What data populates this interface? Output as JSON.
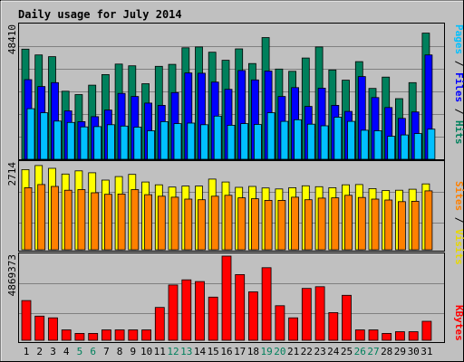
{
  "colors": {
    "background": "#c0c0c0",
    "hits": "#00805c",
    "files": "#0000ff",
    "pages": "#00c0ff",
    "visits": "#ffff00",
    "sites": "#ff8000",
    "kbytes": "#ff0000",
    "title": "#0000ff",
    "weekend_label": "#00805c"
  },
  "chart_data": {
    "type": "bar",
    "title": "Daily usage for July 2014",
    "categories": [
      "1",
      "2",
      "3",
      "4",
      "5",
      "6",
      "7",
      "8",
      "9",
      "10",
      "11",
      "12",
      "13",
      "14",
      "15",
      "16",
      "17",
      "18",
      "19",
      "20",
      "21",
      "22",
      "23",
      "24",
      "25",
      "26",
      "27",
      "28",
      "29",
      "30",
      "31"
    ],
    "weekend_days": [
      "5",
      "6",
      "12",
      "13",
      "19",
      "20",
      "26",
      "27"
    ],
    "panels": [
      {
        "max_label": "48410",
        "side_label": "Pages / Files / Hits",
        "ylim": [
          0,
          48410
        ],
        "series": [
          {
            "name": "Hits",
            "color": "#00805c",
            "values": [
              39800,
              37700,
              37100,
              24600,
              23400,
              26800,
              30600,
              34400,
              33800,
              27300,
              33600,
              34300,
              40300,
              40600,
              38700,
              35800,
              39900,
              34600,
              44000,
              32600,
              31800,
              36600,
              40600,
              32300,
              28600,
              35300,
              25600,
              29700,
              21900,
              27700,
              45600
            ]
          },
          {
            "name": "Files",
            "color": "#0000ff",
            "values": [
              28800,
              26300,
              27700,
              17500,
              13600,
              15400,
              17800,
              23800,
              22700,
              20300,
              19500,
              24100,
              31200,
              31100,
              27900,
              25300,
              32100,
              28700,
              31900,
              22700,
              25900,
              19100,
              25700,
              19500,
              17300,
              29900,
              22300,
              18700,
              14800,
              17100,
              37700
            ]
          },
          {
            "name": "Pages",
            "color": "#00c0ff",
            "values": [
              18300,
              16800,
              13800,
              13300,
              11700,
              11800,
              12500,
              12000,
              11600,
              10300,
              13600,
              12900,
              13100,
              12500,
              15600,
              12300,
              12900,
              12600,
              16800,
              13700,
              14300,
              12700,
              12100,
              15200,
              13700,
              10500,
              10300,
              8300,
              8800,
              9300,
              10900
            ]
          }
        ]
      },
      {
        "max_label": "2714",
        "side_label": "Sites / Visits",
        "ylim": [
          0,
          2714
        ],
        "series": [
          {
            "name": "Visits",
            "color": "#ffff00",
            "values": [
              2530,
              2660,
              2570,
              2390,
              2490,
              2430,
              2200,
              2310,
              2380,
              2140,
              2050,
              1980,
              2010,
              2010,
              2230,
              2140,
              1970,
              2000,
              1950,
              1920,
              1960,
              2020,
              1990,
              1960,
              2050,
              2060,
              1930,
              1870,
              1880,
              1910,
              2080
            ]
          },
          {
            "name": "Sites",
            "color": "#ff8000",
            "values": [
              1960,
              2060,
              2000,
              1880,
              1900,
              1800,
              1750,
              1760,
              1900,
              1740,
              1690,
              1660,
              1600,
              1580,
              1690,
              1720,
              1640,
              1610,
              1560,
              1560,
              1660,
              1580,
              1630,
              1640,
              1720,
              1650,
              1600,
              1570,
              1520,
              1530,
              1860
            ]
          }
        ]
      },
      {
        "max_label": "4869373",
        "side_label": "KBytes",
        "ylim": [
          0,
          4869373
        ],
        "series": [
          {
            "name": "KBytes",
            "color": "#ff0000",
            "values": [
              2300000,
              1400000,
              1300000,
              600000,
              400000,
              400000,
              600000,
              600000,
              600000,
              600000,
              1900000,
              3200000,
              3500000,
              3400000,
              2500000,
              4869373,
              3800000,
              2800000,
              4200000,
              2000000,
              1300000,
              3000000,
              3100000,
              1600000,
              2600000,
              600000,
              600000,
              400000,
              500000,
              500000,
              1100000
            ]
          }
        ]
      }
    ]
  }
}
